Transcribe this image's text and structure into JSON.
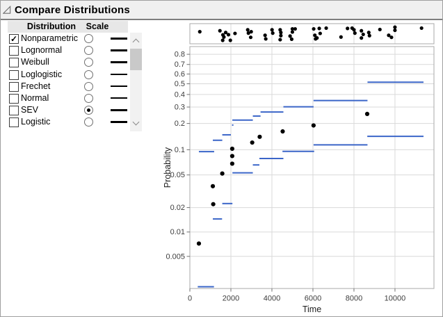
{
  "window": {
    "title": "Compare Distributions"
  },
  "panel": {
    "columns": [
      "Distribution",
      "Scale"
    ],
    "rows": [
      {
        "label": "Nonparametric",
        "checked": true,
        "scale_selected": false
      },
      {
        "label": "Lognormal",
        "checked": false,
        "scale_selected": false
      },
      {
        "label": "Weibull",
        "checked": false,
        "scale_selected": false
      },
      {
        "label": "Loglogistic",
        "checked": false,
        "scale_selected": false
      },
      {
        "label": "Frechet",
        "checked": false,
        "scale_selected": false
      },
      {
        "label": "Normal",
        "checked": false,
        "scale_selected": false
      },
      {
        "label": "SEV",
        "checked": false,
        "scale_selected": true
      },
      {
        "label": "Logistic",
        "checked": false,
        "scale_selected": false
      }
    ]
  },
  "chart_data": {
    "type": "line",
    "title": "",
    "xlabel": "Time",
    "ylabel": "Probability",
    "xlim": [
      0,
      11900
    ],
    "ylim": [
      0.002,
      0.8655
    ],
    "y_scale": "sev-probability (linear in log10(-ln(1-p)))",
    "grid": true,
    "x_ticks": [
      0,
      2000,
      4000,
      6000,
      8000,
      10000
    ],
    "x_tick_labels": [
      "0",
      "2000",
      "4000",
      "6000",
      "8000",
      "10000"
    ],
    "y_ticks": [
      0.8,
      0.7,
      0.6,
      0.5,
      0.4,
      0.3,
      0.2,
      0.1,
      0.05,
      0.02,
      0.01,
      0.005
    ],
    "y_tick_labels": [
      "0.8",
      "0.7",
      "0.6",
      "0.5",
      "0.4",
      "0.3",
      "0.2",
      "0.1",
      "0.05",
      "0.02",
      "0.01",
      "0.005"
    ],
    "colors": {
      "blue": "#3a65c8",
      "marker": "#000000",
      "grid": "#d9d9d9",
      "frame": "#a8a8a8",
      "tick": "#707070"
    },
    "series": [
      {
        "name": "nonparametric-upper-steps",
        "style": "h-segments",
        "segments": [
          [
            440,
            1185,
            0.095
          ],
          [
            1120,
            1580,
            0.129
          ],
          [
            1580,
            2000,
            0.149
          ],
          [
            2055,
            2105,
            0.192
          ],
          [
            2070,
            3070,
            0.218
          ],
          [
            3070,
            3445,
            0.241
          ],
          [
            3445,
            4560,
            0.266
          ],
          [
            4560,
            6030,
            0.302
          ],
          [
            6030,
            8660,
            0.349
          ],
          [
            8660,
            11390,
            0.516
          ]
        ]
      },
      {
        "name": "nonparametric-lower-steps",
        "style": "h-segments",
        "segments": [
          [
            385,
            1175,
            0.0021
          ],
          [
            1120,
            1570,
            0.0145
          ],
          [
            1580,
            2075,
            0.0224
          ],
          [
            2075,
            3070,
            0.053
          ],
          [
            3070,
            3390,
            0.066
          ],
          [
            3390,
            4560,
            0.0788
          ],
          [
            4515,
            6060,
            0.0956
          ],
          [
            6030,
            8660,
            0.114
          ],
          [
            8650,
            11390,
            0.143
          ]
        ]
      },
      {
        "name": "failure-probability-points",
        "style": "scatter",
        "points": [
          [
            440,
            0.0072
          ],
          [
            1140,
            0.022
          ],
          [
            1120,
            0.0365
          ],
          [
            1580,
            0.052
          ],
          [
            2065,
            0.0683
          ],
          [
            2065,
            0.0842
          ],
          [
            2065,
            0.1027
          ],
          [
            3040,
            0.1214
          ],
          [
            3405,
            0.1413
          ],
          [
            4525,
            0.163
          ],
          [
            6030,
            0.19
          ],
          [
            8645,
            0.254
          ]
        ]
      }
    ],
    "event_plot": {
      "points": [
        [
          484,
          0.36
        ],
        [
          1466,
          0.3
        ],
        [
          1601,
          0.91
        ],
        [
          1612,
          0.56
        ],
        [
          1659,
          0.7
        ],
        [
          1747,
          0.41
        ],
        [
          1882,
          0.55
        ],
        [
          1974,
          0.91
        ],
        [
          2201,
          0.47
        ],
        [
          2821,
          0.24
        ],
        [
          2855,
          0.45
        ],
        [
          2966,
          0.72
        ],
        [
          2990,
          0.36
        ],
        [
          3667,
          0.59
        ],
        [
          3701,
          0.82
        ],
        [
          4006,
          0.24
        ],
        [
          4040,
          0.45
        ],
        [
          4402,
          0.24
        ],
        [
          4402,
          0.87
        ],
        [
          4436,
          0.41
        ],
        [
          4436,
          0.61
        ],
        [
          4886,
          0.64
        ],
        [
          4964,
          0.84
        ],
        [
          4998,
          0.18
        ],
        [
          4998,
          0.38
        ],
        [
          5133,
          0.18
        ],
        [
          6037,
          0.18
        ],
        [
          6094,
          0.59
        ],
        [
          6128,
          0.82
        ],
        [
          6196,
          0.76
        ],
        [
          6308,
          0.15
        ],
        [
          6352,
          0.47
        ],
        [
          6647,
          0.13
        ],
        [
          7368,
          0.7
        ],
        [
          7686,
          0.15
        ],
        [
          7910,
          0.13
        ],
        [
          8001,
          0.24
        ],
        [
          8045,
          0.45
        ],
        [
          8363,
          0.3
        ],
        [
          8363,
          0.76
        ],
        [
          8451,
          0.53
        ],
        [
          8722,
          0.41
        ],
        [
          8756,
          0.61
        ],
        [
          9264,
          0.22
        ],
        [
          9694,
          0.59
        ],
        [
          9829,
          0.72
        ],
        [
          9998,
          0.07
        ],
        [
          9998,
          0.27
        ],
        [
          11295,
          0.13
        ]
      ]
    }
  }
}
